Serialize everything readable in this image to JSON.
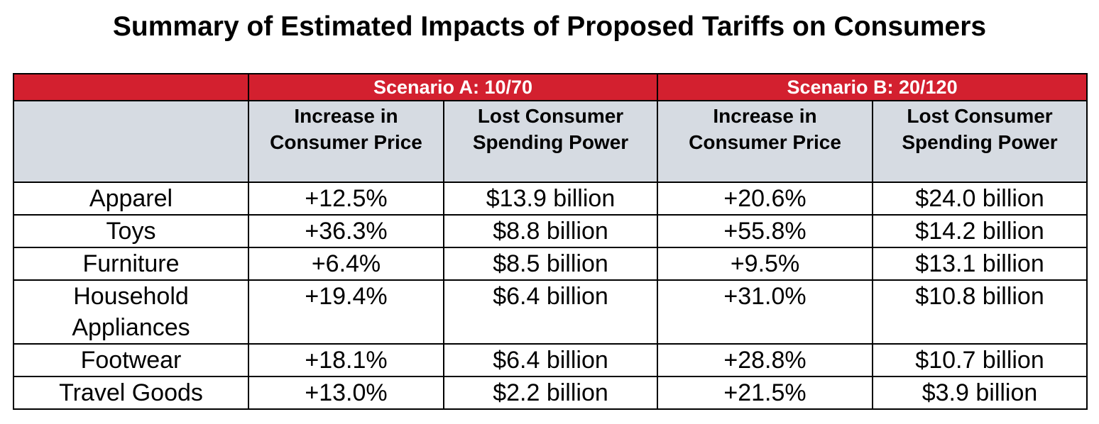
{
  "title": "Summary of Estimated Impacts of Proposed Tariffs on Consumers",
  "table": {
    "groups": [
      "Scenario A: 10/70",
      "Scenario B: 20/120"
    ],
    "columns": [
      "Increase in Consumer Price",
      "Lost Consumer Spending Power",
      "Increase in Consumer Price",
      "Lost Consumer Spending Power"
    ],
    "rows": [
      [
        "Apparel",
        "+12.5%",
        "$13.9 billion",
        "+20.6%",
        "$24.0 billion"
      ],
      [
        "Toys",
        "+36.3%",
        "$8.8 billion",
        "+55.8%",
        "$14.2 billion"
      ],
      [
        "Furniture",
        "+6.4%",
        "$8.5 billion",
        "+9.5%",
        "$13.1 billion"
      ],
      [
        "Household Appliances",
        "+19.4%",
        "$6.4 billion",
        "+31.0%",
        "$10.8 billion"
      ],
      [
        "Footwear",
        "+18.1%",
        "$6.4 billion",
        "+28.8%",
        "$10.7 billion"
      ],
      [
        "Travel Goods",
        "+13.0%",
        "$2.2 billion",
        "+21.5%",
        "$3.9 billion"
      ]
    ]
  }
}
